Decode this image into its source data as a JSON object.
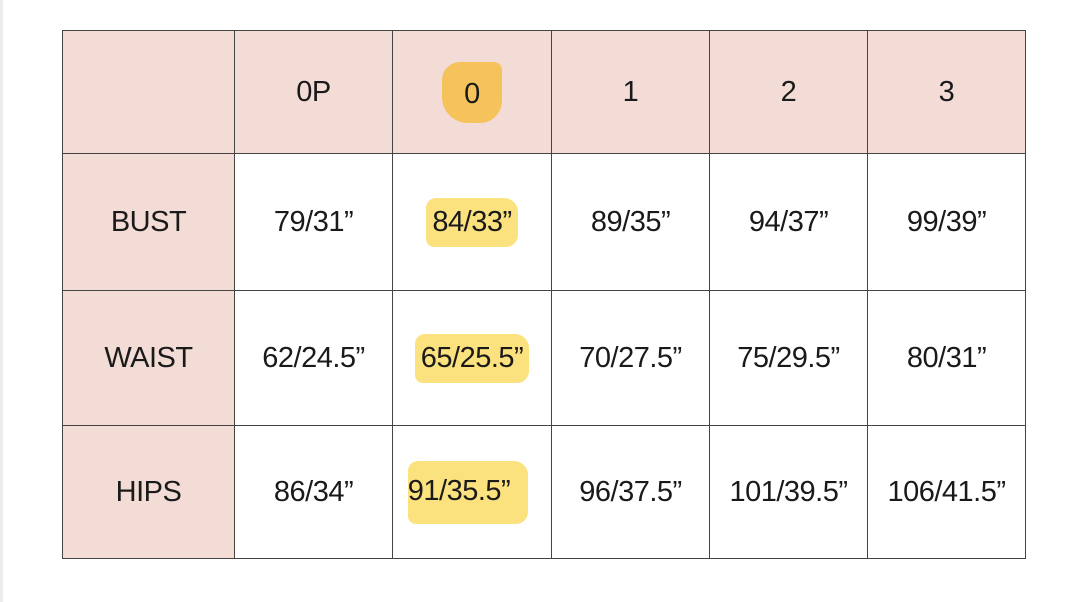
{
  "colors": {
    "header_bg": "#f4dcd6",
    "highlight_header": "#f5c25b",
    "highlight_body": "#fbe27e"
  },
  "highlighted_size": "0",
  "headers": [
    "",
    "0P",
    "0",
    "1",
    "2",
    "3"
  ],
  "rows": [
    {
      "label": "BUST",
      "values": [
        "79/31”",
        "84/33”",
        "89/35”",
        "94/37”",
        "99/39”"
      ]
    },
    {
      "label": "WAIST",
      "values": [
        "62/24.5”",
        "65/25.5”",
        "70/27.5”",
        "75/29.5”",
        "80/31”"
      ]
    },
    {
      "label": "HIPS",
      "values": [
        "86/34”",
        "91/35.5”",
        "96/37.5”",
        "101/39.5”",
        "106/41.5”"
      ]
    }
  ]
}
